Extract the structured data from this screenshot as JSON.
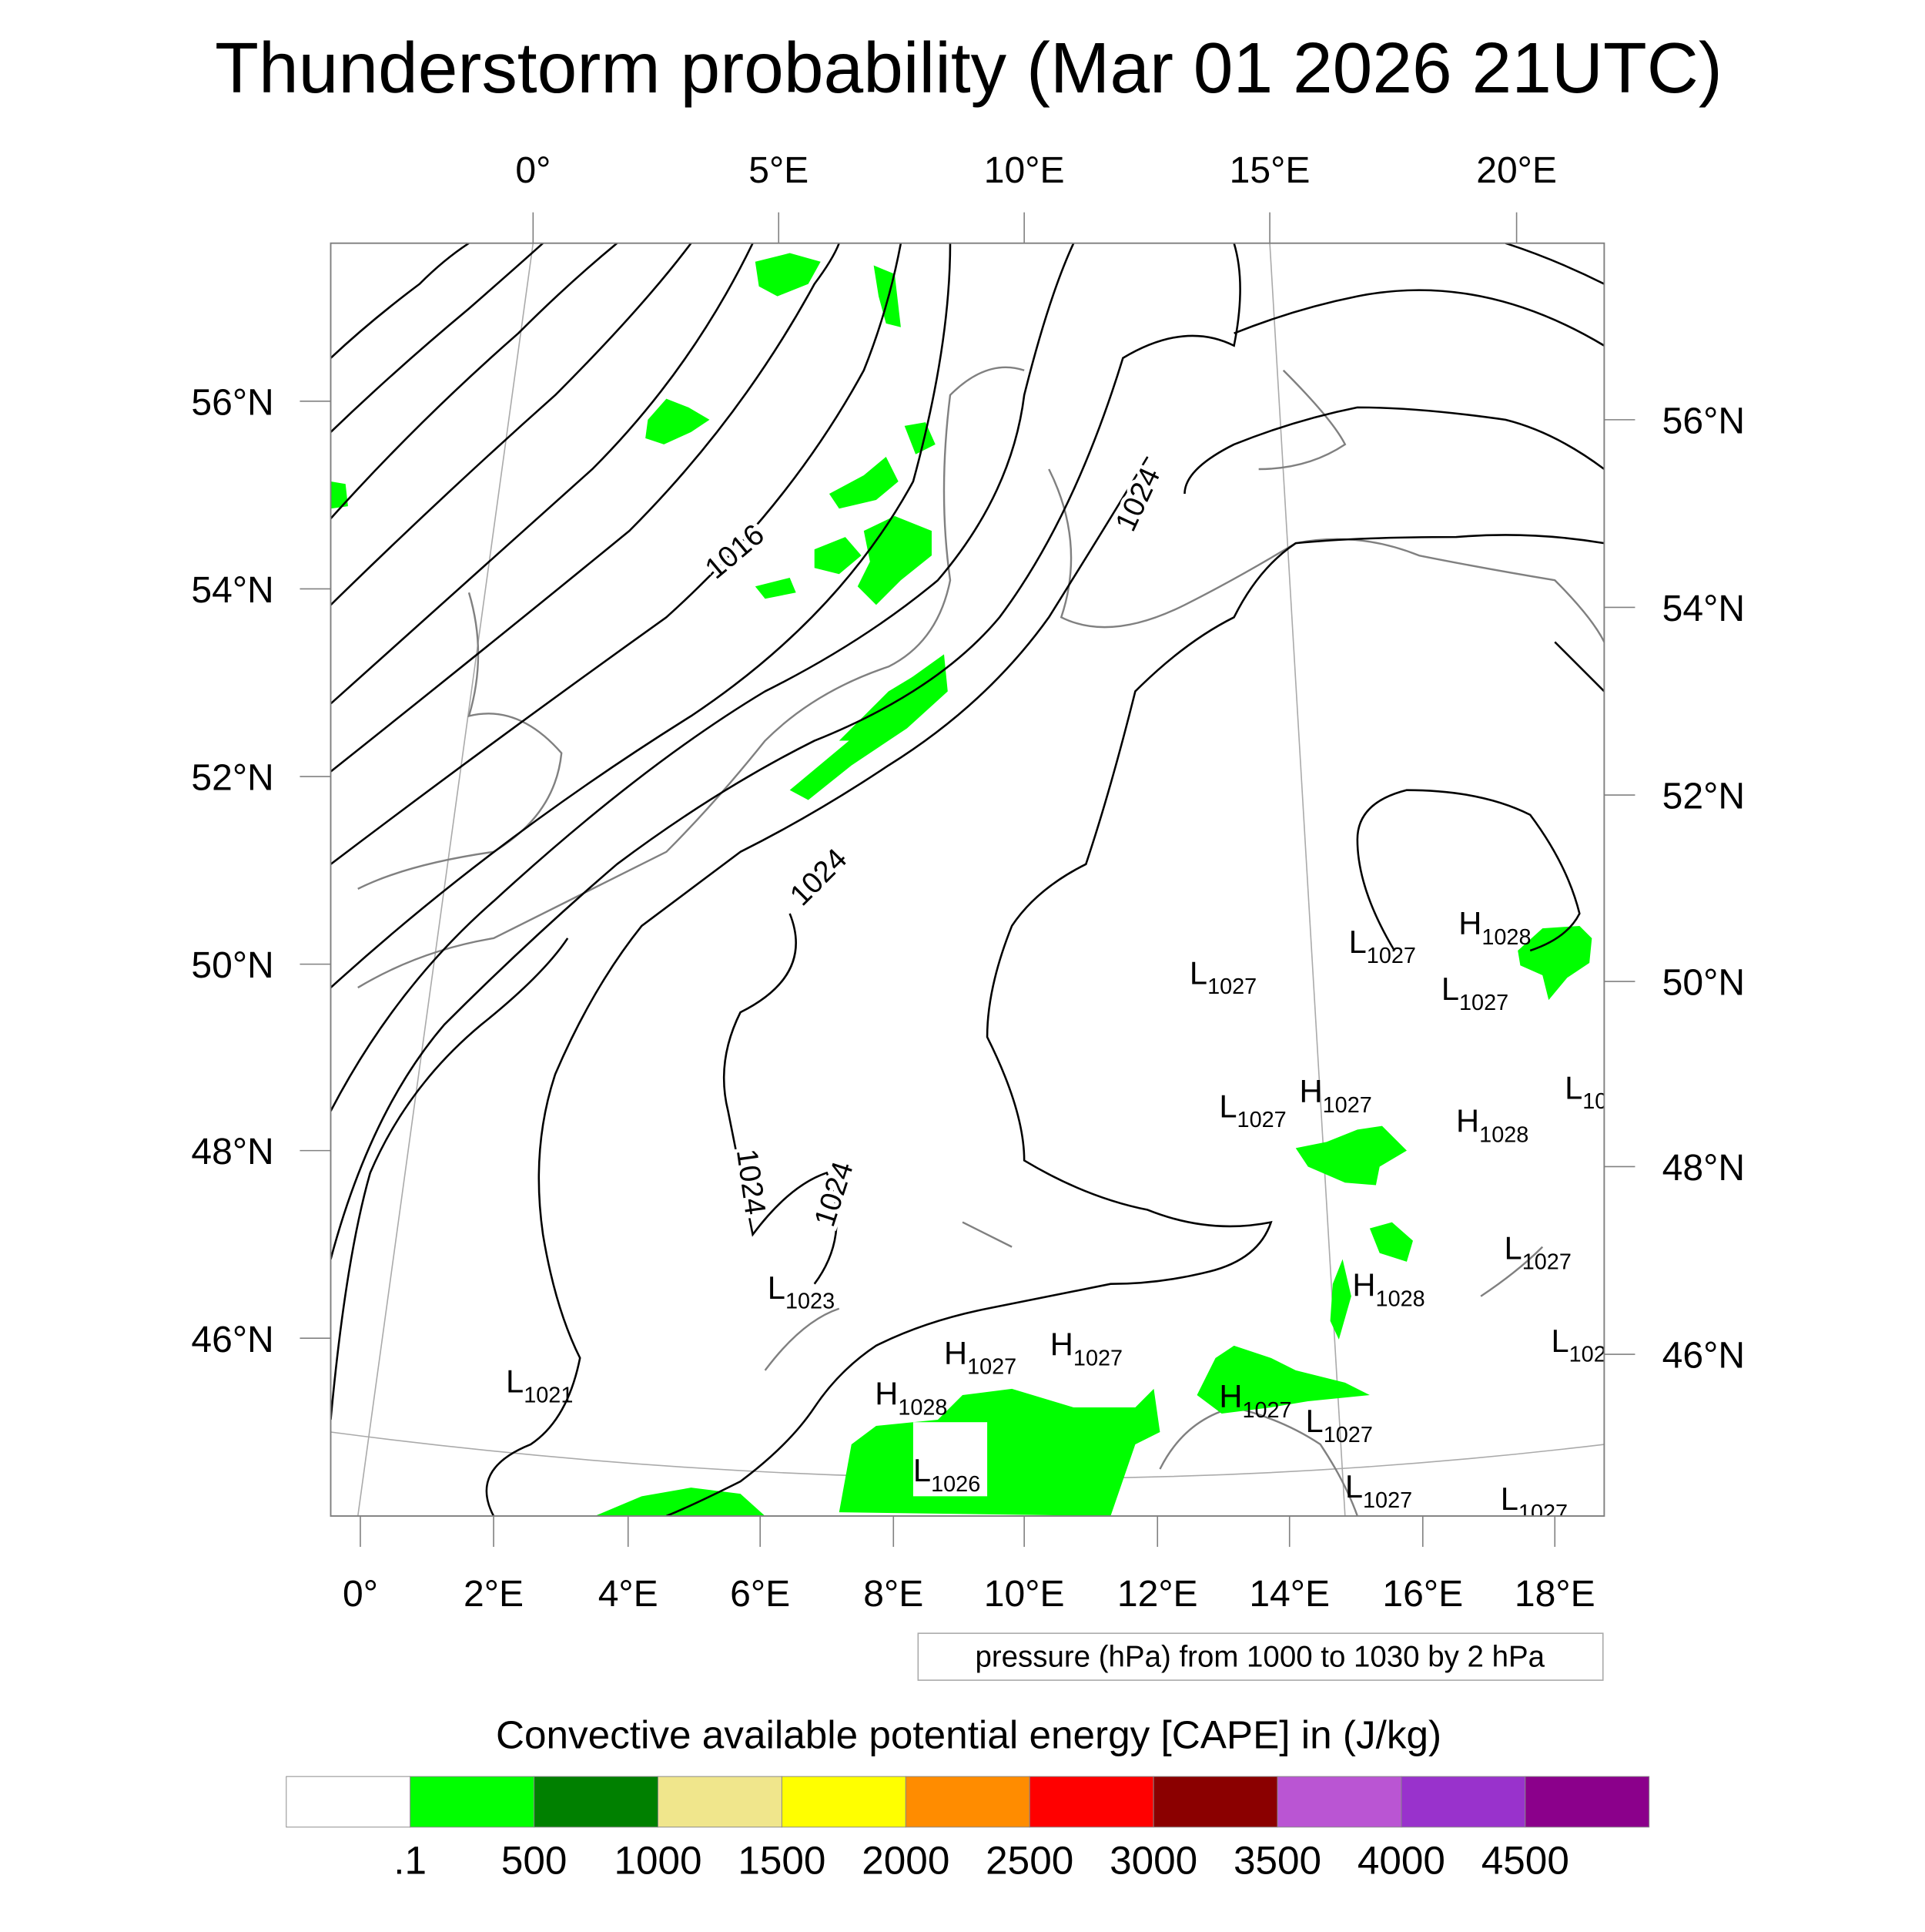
{
  "chart_data": {
    "type": "heatmap",
    "title": "Thunderstorm probability (Mar 01 2026 21UTC)",
    "map": {
      "top_lon_ticks": [
        "0°",
        "5°E",
        "10°E",
        "15°E",
        "20°E"
      ],
      "bottom_lon_ticks": [
        "0°",
        "2°E",
        "4°E",
        "6°E",
        "8°E",
        "10°E",
        "12°E",
        "14°E",
        "16°E",
        "18°E"
      ],
      "left_lat_ticks": [
        "56°N",
        "54°N",
        "52°N",
        "50°N",
        "48°N",
        "46°N"
      ],
      "right_lat_ticks": [
        "56°N",
        "54°N",
        "52°N",
        "50°N",
        "48°N",
        "46°N"
      ]
    },
    "contour_labels": [
      "1016",
      "1024",
      "1024",
      "1024",
      "1024"
    ],
    "pressure_centers": [
      {
        "type": "L",
        "value": "1021"
      },
      {
        "type": "L",
        "value": "1023"
      },
      {
        "type": "H",
        "value": "1028"
      },
      {
        "type": "H",
        "value": "1027"
      },
      {
        "type": "H",
        "value": "1027"
      },
      {
        "type": "L",
        "value": "1026"
      },
      {
        "type": "H",
        "value": "1027"
      },
      {
        "type": "L",
        "value": "1027"
      },
      {
        "type": "L",
        "value": "1027"
      },
      {
        "type": "L",
        "value": "1027"
      },
      {
        "type": "L",
        "value": "1027"
      },
      {
        "type": "L",
        "value": "1027"
      },
      {
        "type": "H",
        "value": "1028"
      },
      {
        "type": "L",
        "value": "1027"
      },
      {
        "type": "L",
        "value": "10"
      },
      {
        "type": "H",
        "value": "1027"
      },
      {
        "type": "L",
        "value": "1027"
      },
      {
        "type": "H",
        "value": "1028"
      },
      {
        "type": "L",
        "value": "1027"
      },
      {
        "type": "H",
        "value": "1028"
      },
      {
        "type": "L",
        "value": "102"
      }
    ],
    "contour_legend": "pressure (hPa) from 1000 to 1030 by 2 hPa",
    "colorbar": {
      "title": "Convective available potential energy [CAPE] in (J/kg)",
      "labels": [
        ".1",
        "500",
        "1000",
        "1500",
        "2000",
        "2500",
        "3000",
        "3500",
        "4000",
        "4500"
      ],
      "colors": [
        "#ffffff",
        "#00ff00",
        "#008000",
        "#f0e68c",
        "#ffff00",
        "#ff8c00",
        "#ff0000",
        "#8b0000",
        "#ba55d3",
        "#9932cc",
        "#8b008b"
      ]
    }
  }
}
